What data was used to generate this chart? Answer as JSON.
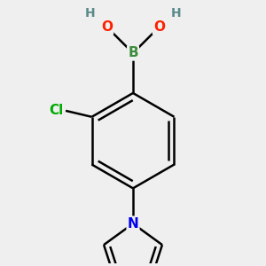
{
  "bg_color": "#efefef",
  "bond_color": "#000000",
  "atom_colors": {
    "B": "#3c8c3c",
    "O": "#ff2000",
    "H": "#5a8a8a",
    "Cl": "#00aa00",
    "N": "#0000ee",
    "C": "#000000"
  },
  "bond_width": 1.8,
  "figsize": [
    3.0,
    3.0
  ],
  "dpi": 100
}
